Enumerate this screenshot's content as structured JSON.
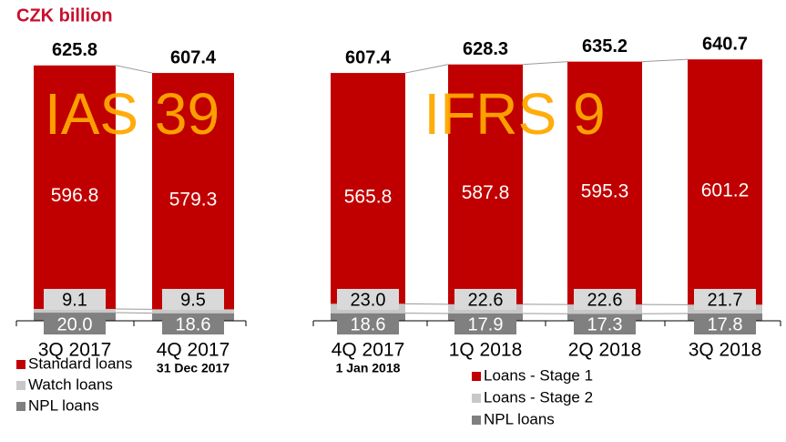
{
  "header": {
    "title": "CZK billion"
  },
  "chart_data": [
    {
      "type": "bar",
      "stacked": true,
      "categories": [
        "3Q 2017",
        "4Q 2017"
      ],
      "category_notes": [
        null,
        "31 Dec 2017"
      ],
      "annotation": "IAS 39",
      "ylim": [
        0,
        650
      ],
      "series": [
        {
          "name": "Standard loans",
          "color": "#c00000",
          "values": [
            596.8,
            579.3
          ]
        },
        {
          "name": "Watch loans",
          "color": "#c8c8c8",
          "values": [
            9.1,
            9.5
          ]
        },
        {
          "name": "NPL loans",
          "color": "#808080",
          "values": [
            20.0,
            18.6
          ],
          "value_labels": [
            "20.0",
            "18.6"
          ]
        }
      ],
      "totals": [
        625.8,
        607.4
      ]
    },
    {
      "type": "bar",
      "stacked": true,
      "categories": [
        "4Q 2017",
        "1Q 2018",
        "2Q 2018",
        "3Q 2018"
      ],
      "category_notes": [
        "1 Jan 2018",
        null,
        null,
        null
      ],
      "annotation": "IFRS 9",
      "ylim": [
        0,
        650
      ],
      "series": [
        {
          "name": "Loans - Stage 1",
          "color": "#c00000",
          "values": [
            565.8,
            587.8,
            595.3,
            601.2
          ]
        },
        {
          "name": "Loans - Stage 2",
          "color": "#c8c8c8",
          "values": [
            23.0,
            22.6,
            22.6,
            21.7
          ],
          "value_labels": [
            "23.0",
            "22.6",
            "22.6",
            "21.7"
          ]
        },
        {
          "name": "NPL loans",
          "color": "#808080",
          "values": [
            18.6,
            17.9,
            17.3,
            17.8
          ]
        }
      ],
      "totals": [
        607.4,
        628.3,
        635.2,
        640.7
      ]
    }
  ]
}
